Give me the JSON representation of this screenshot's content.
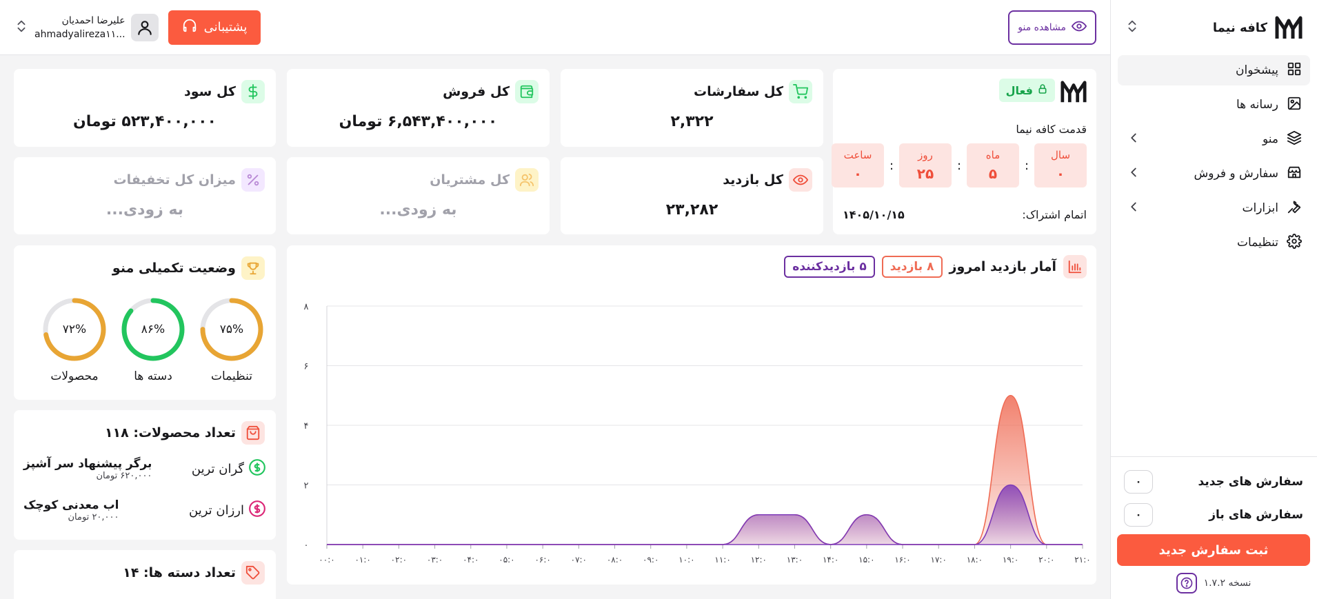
{
  "sidebar": {
    "brand": "کافه نیما",
    "items": [
      {
        "label": "پیشخوان",
        "icon": "grid-icon",
        "active": true
      },
      {
        "label": "رسانه ها",
        "icon": "image-icon"
      },
      {
        "label": "منو",
        "icon": "layers-icon",
        "has_children": true
      },
      {
        "label": "سفارش و فروش",
        "icon": "store-icon",
        "has_children": true
      },
      {
        "label": "ابزارات",
        "icon": "wrench-icon",
        "has_children": true
      },
      {
        "label": "تنظیمات",
        "icon": "gear-icon"
      }
    ],
    "new_orders_label": "سفارش های جدید",
    "new_orders_count": "۰",
    "open_orders_label": "سفارش های باز",
    "open_orders_count": "۰",
    "new_order_button": "ثبت سفارش جدید",
    "version": "نسخه ۱.۷.۲"
  },
  "topbar": {
    "view_menu": "مشاهده منو",
    "support": "پشتیبانی",
    "user_name": "علیرضا احمدیان",
    "user_email": "ahmadyalireza۱۱..."
  },
  "subscription": {
    "status": "فعال",
    "name": "قدمت کافه نیما",
    "countdown": [
      {
        "label": "سال",
        "value": "۰"
      },
      {
        "label": "ماه",
        "value": "۵"
      },
      {
        "label": "روز",
        "value": "۲۵"
      },
      {
        "label": "ساعت",
        "value": "۰"
      }
    ],
    "expire_label": "اتمام اشتراک:",
    "expire_date": "۱۴۰۵/۱۰/۱۵"
  },
  "stats": {
    "orders": {
      "title": "کل سفارشات",
      "value": "۲,۳۲۲"
    },
    "sales": {
      "title": "کل فروش",
      "value": "۶,۵۴۳,۴۰۰,۰۰۰ تومان"
    },
    "profit": {
      "title": "کل سود",
      "value": "۵۲۳,۴۰۰,۰۰۰ تومان"
    },
    "visits": {
      "title": "کل بازدید",
      "value": "۲۳,۲۸۲"
    },
    "customers": {
      "title": "کل مشتریان",
      "value": "به زودی..."
    },
    "discounts": {
      "title": "میزان کل تخفیفات",
      "value": "به زودی..."
    }
  },
  "completion": {
    "title": "وضعیت تکمیلی منو",
    "rings": [
      {
        "label": "تنظیمات",
        "pct_text": "۷۵%",
        "pct": 75,
        "color": "#e8a534"
      },
      {
        "label": "دسته ها",
        "pct_text": "۸۶%",
        "pct": 86,
        "color": "#22c55e"
      },
      {
        "label": "محصولات",
        "pct_text": "۷۲%",
        "pct": 72,
        "color": "#e8a534"
      }
    ]
  },
  "products": {
    "title": "تعداد محصولات: ۱۱۸",
    "most_expensive_label": "گران ترین",
    "most_expensive_name": "برگر پیشنهاد سر آشپز",
    "most_expensive_price": "۶۲۰,۰۰۰ تومان",
    "cheapest_label": "ارزان ترین",
    "cheapest_name": "اب معدنی کوچک",
    "cheapest_price": "۲۰,۰۰۰ تومان"
  },
  "categories": {
    "title": "تعداد دسته ها: ۱۴"
  },
  "chart_data": {
    "type": "area",
    "title": "آمار بازدید امروز",
    "badges": {
      "visits": "۸ بازدید",
      "visitors": "۵ بازدیدکننده"
    },
    "x": [
      "۰۰:۰",
      "۰۱:۰",
      "۰۲:۰",
      "۰۳:۰",
      "۰۴:۰",
      "۰۵:۰",
      "۰۶:۰",
      "۰۷:۰",
      "۰۸:۰",
      "۰۹:۰",
      "۱۰:۰",
      "۱۱:۰",
      "۱۲:۰",
      "۱۳:۰",
      "۱۴:۰",
      "۱۵:۰",
      "۱۶:۰",
      "۱۷:۰",
      "۱۸:۰",
      "۱۹:۰",
      "۲۰:۰",
      "۲۱:۰"
    ],
    "ylim": [
      0,
      8
    ],
    "yticks": [
      {
        "value": 0,
        "label": "۰"
      },
      {
        "value": 2,
        "label": "۲"
      },
      {
        "value": 4,
        "label": "۴"
      },
      {
        "value": 6,
        "label": "۶"
      },
      {
        "value": 8,
        "label": "۸"
      }
    ],
    "series": [
      {
        "color": "#ef6b54",
        "values": [
          0,
          0,
          0,
          0,
          0,
          0,
          0,
          0,
          0,
          0,
          0,
          0,
          1,
          1,
          0,
          1,
          0,
          0,
          0,
          5,
          0,
          0
        ]
      },
      {
        "color": "#7e3bb8",
        "values": [
          0,
          0,
          0,
          0,
          0,
          0,
          0,
          0,
          0,
          0,
          0,
          0,
          1,
          1,
          0,
          1,
          0,
          0,
          0,
          2,
          0,
          0
        ]
      }
    ]
  }
}
